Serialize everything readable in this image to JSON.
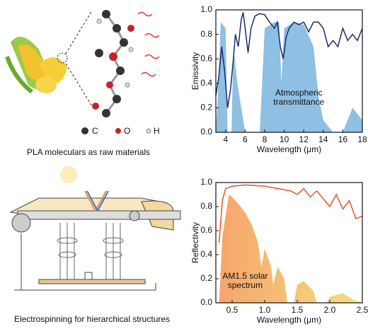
{
  "captions": {
    "top": "PLA moleculars as raw materials",
    "bottom": "Electrospinning for hierarchical structures"
  },
  "atom_legend": [
    "C",
    "O",
    "H"
  ],
  "chart_data": [
    {
      "type": "line",
      "ylabel": "Emissivity",
      "xlabel": "Wavelength (μm)",
      "annotation": [
        "Atmospheric",
        "transmittance"
      ],
      "xlim": [
        3,
        18
      ],
      "ylim": [
        0,
        1
      ],
      "xticks": [
        4,
        6,
        8,
        10,
        12,
        14,
        16,
        18
      ],
      "yticks": [
        {
          "value": 0,
          "label": "0.0"
        },
        {
          "value": 0.2,
          "label": "0.2"
        },
        {
          "value": 0.4,
          "label": "0.4"
        },
        {
          "value": 0.6,
          "label": "0.6"
        },
        {
          "value": 0.8,
          "label": "0.8"
        },
        {
          "value": 1,
          "label": "1.0"
        }
      ],
      "series": [
        {
          "style": "area",
          "color": "#8fbfe3",
          "x": [
            3,
            3.2,
            3.5,
            4.0,
            4.2,
            4.6,
            4.8,
            5.2,
            5.6,
            6.0,
            7.5,
            7.8,
            8.0,
            9.0,
            9.5,
            9.7,
            10.0,
            11.0,
            12.0,
            13.0,
            13.5,
            14.0,
            15.0,
            16.0,
            16.5,
            17.0,
            18.0
          ],
          "values": [
            0.0,
            0.3,
            0.9,
            0.85,
            0.0,
            0.0,
            0.7,
            0.4,
            0.2,
            0.0,
            0.0,
            0.5,
            0.85,
            0.9,
            0.9,
            0.4,
            0.85,
            0.9,
            0.88,
            0.7,
            0.3,
            0.1,
            0.0,
            0.0,
            0.1,
            0.2,
            0.1
          ]
        },
        {
          "style": "line",
          "color": "#1f2a6b",
          "x": [
            3,
            3.3,
            3.6,
            3.9,
            4.2,
            4.5,
            4.8,
            5.0,
            5.3,
            5.6,
            5.8,
            6.0,
            6.3,
            6.6,
            7.0,
            7.5,
            8.0,
            8.5,
            9.0,
            9.3,
            9.6,
            9.9,
            10.2,
            10.5,
            11.0,
            11.5,
            12.0,
            12.5,
            13.0,
            13.5,
            14.0,
            14.5,
            15.0,
            15.5,
            16.0,
            16.5,
            17.0,
            17.5,
            18.0
          ],
          "values": [
            0.3,
            0.45,
            0.7,
            0.5,
            0.2,
            0.35,
            0.6,
            0.8,
            0.7,
            0.92,
            0.98,
            0.85,
            0.65,
            0.85,
            0.95,
            0.97,
            0.96,
            0.9,
            0.85,
            0.9,
            0.7,
            0.6,
            0.78,
            0.85,
            0.9,
            0.88,
            0.9,
            0.82,
            0.9,
            0.9,
            0.85,
            0.7,
            0.75,
            0.7,
            0.85,
            0.75,
            0.8,
            0.75,
            0.85
          ]
        }
      ]
    },
    {
      "type": "line",
      "ylabel": "Reflectivity",
      "xlabel": "Wavelength (μm)",
      "annotation": [
        "AM1.5 solar",
        "spectrum"
      ],
      "xlim": [
        0.25,
        2.5
      ],
      "ylim": [
        0,
        1
      ],
      "xticks": [
        {
          "value": 0.5,
          "label": "0.5"
        },
        {
          "value": 1,
          "label": "1.0"
        },
        {
          "value": 1.5,
          "label": "1.5"
        },
        {
          "value": 2,
          "label": "2.0"
        },
        {
          "value": 2.5,
          "label": "2.5"
        }
      ],
      "yticks": [
        {
          "value": 0,
          "label": "0.0"
        },
        {
          "value": 0.2,
          "label": "0.2"
        },
        {
          "value": 0.4,
          "label": "0.4"
        },
        {
          "value": 0.6,
          "label": "0.6"
        },
        {
          "value": 0.8,
          "label": "0.8"
        },
        {
          "value": 1,
          "label": "1.0"
        }
      ],
      "series": [
        {
          "style": "area",
          "colors": [
            "#f6a56b",
            "#f2df86"
          ],
          "x": [
            0.3,
            0.35,
            0.45,
            0.5,
            0.6,
            0.7,
            0.8,
            0.9,
            0.95,
            1.0,
            1.1,
            1.13,
            1.2,
            1.3,
            1.35,
            1.45,
            1.5,
            1.6,
            1.75,
            1.8,
            1.95,
            2.0,
            2.2,
            2.35,
            2.5
          ],
          "values": [
            0.0,
            0.55,
            0.9,
            0.88,
            0.82,
            0.75,
            0.65,
            0.5,
            0.3,
            0.45,
            0.3,
            0.15,
            0.3,
            0.2,
            0.0,
            0.0,
            0.15,
            0.18,
            0.1,
            0.0,
            0.0,
            0.05,
            0.08,
            0.03,
            0.0
          ]
        },
        {
          "style": "line",
          "color": "#e8532b",
          "x": [
            0.3,
            0.35,
            0.4,
            0.5,
            0.7,
            1.0,
            1.2,
            1.4,
            1.5,
            1.6,
            1.7,
            1.8,
            2.0,
            2.1,
            2.2,
            2.3,
            2.4,
            2.5
          ],
          "values": [
            0.5,
            0.85,
            0.95,
            0.97,
            0.98,
            0.97,
            0.95,
            0.93,
            0.9,
            0.95,
            0.88,
            0.93,
            0.8,
            0.9,
            0.78,
            0.85,
            0.7,
            0.72
          ]
        }
      ]
    }
  ]
}
